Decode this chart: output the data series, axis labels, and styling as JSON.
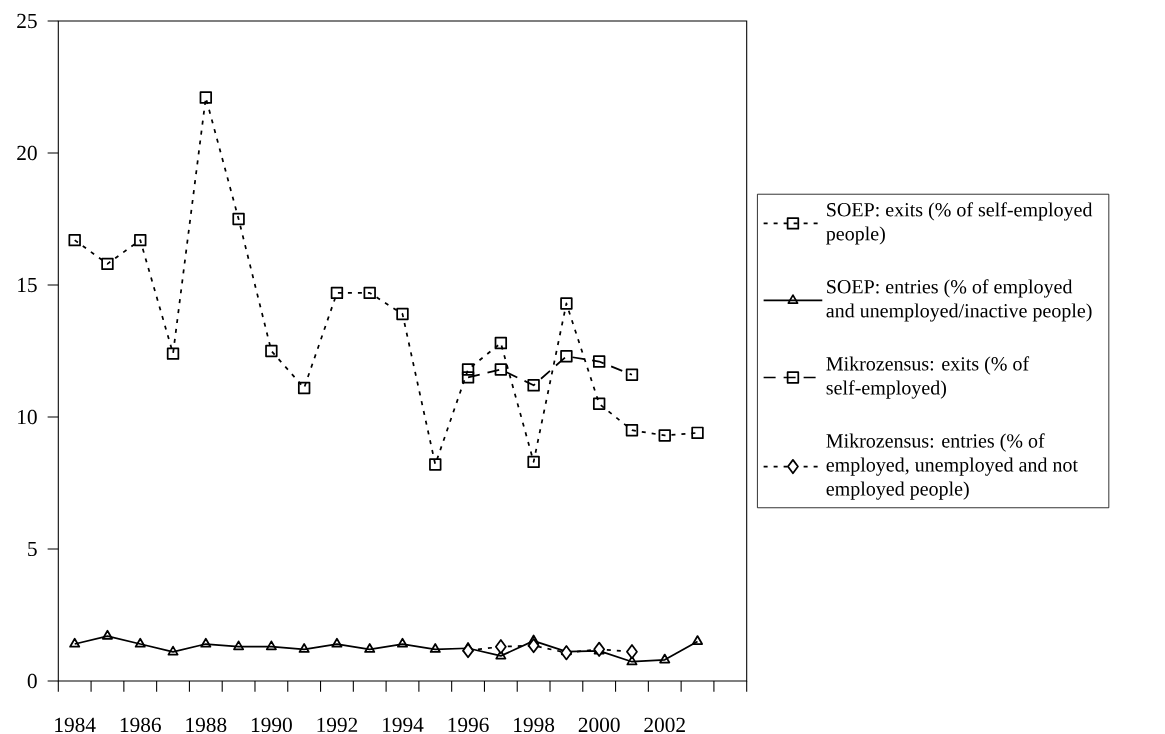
{
  "chart_data": {
    "type": "line",
    "categories": [
      "1984",
      null,
      "1986",
      null,
      "1988",
      null,
      "1990",
      null,
      "1992",
      null,
      "1994",
      null,
      "1996",
      null,
      "1998",
      null,
      "2000",
      null,
      "2002",
      null,
      null
    ],
    "ylim": [
      0,
      25
    ],
    "yticks": [
      0,
      5,
      10,
      15,
      20,
      25
    ],
    "legend": "right",
    "series": [
      {
        "name": "SOEP: exits (% of self-employed people)",
        "color": "#000000",
        "marker": "square",
        "line_style": "dotted",
        "values": [
          16.7,
          15.8,
          16.7,
          12.4,
          22.1,
          17.5,
          12.5,
          11.1,
          14.7,
          14.7,
          13.9,
          8.2,
          11.8,
          12.8,
          8.3,
          14.3,
          10.5,
          9.5,
          9.3,
          9.4,
          null
        ]
      },
      {
        "name": "SOEP: entries (% of employed and unemployed/inactive people)",
        "color": "#000000",
        "marker": "triangle",
        "line_style": "solid",
        "values": [
          1.4,
          1.7,
          1.4,
          1.1,
          1.4,
          1.3,
          1.3,
          1.2,
          1.4,
          1.2,
          1.4,
          1.2,
          1.24,
          0.95,
          1.52,
          1.11,
          1.14,
          0.73,
          0.8,
          1.5,
          null
        ]
      },
      {
        "name": "Mikrozensus: exits (% of self-employed)",
        "color": "#000000",
        "marker": "square",
        "line_style": "dashed",
        "values": [
          null,
          null,
          null,
          null,
          null,
          null,
          null,
          null,
          null,
          null,
          null,
          null,
          11.5,
          11.8,
          11.2,
          12.3,
          12.1,
          11.6,
          null,
          null,
          null
        ]
      },
      {
        "name": "Mikrozensus: entries (% of employed, unemployed and not employed people)",
        "color": "#000000",
        "marker": "diamond",
        "line_style": "dotted",
        "values": [
          null,
          null,
          null,
          null,
          null,
          null,
          null,
          null,
          null,
          null,
          null,
          null,
          1.15,
          1.3,
          1.34,
          1.07,
          1.2,
          1.11,
          null,
          null,
          null
        ]
      }
    ]
  }
}
